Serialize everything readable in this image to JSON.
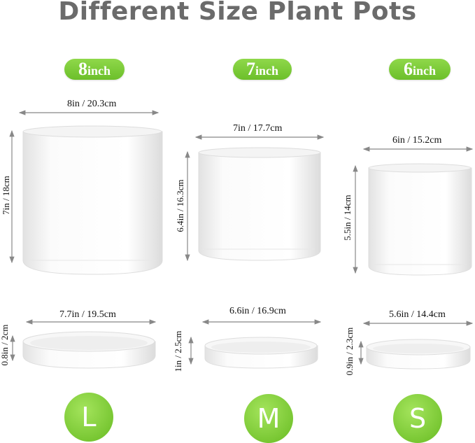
{
  "title": "Different Size Plant Pots",
  "pots": [
    {
      "size_num": "8",
      "size_unit": "inch",
      "width": "8in / 20.3cm",
      "height": "7in / 18cm",
      "saucer_width": "7.7in / 19.5cm",
      "saucer_height": "0.8in / 2cm",
      "letter": "L"
    },
    {
      "size_num": "7",
      "size_unit": "inch",
      "width": "7in / 17.7cm",
      "height": "6.4in / 16.3cm",
      "saucer_width": "6.6in / 16.9cm",
      "saucer_height": "1in / 2.5cm",
      "letter": "M"
    },
    {
      "size_num": "6",
      "size_unit": "inch",
      "width": "6in / 15.2cm",
      "height": "5.5in / 14cm",
      "saucer_width": "5.6in / 14.4cm",
      "saucer_height": "0.9in / 2.3cm",
      "letter": "S"
    }
  ],
  "colors": {
    "accent_green": "#7ccb35",
    "title_gray": "#6b6b6b"
  }
}
